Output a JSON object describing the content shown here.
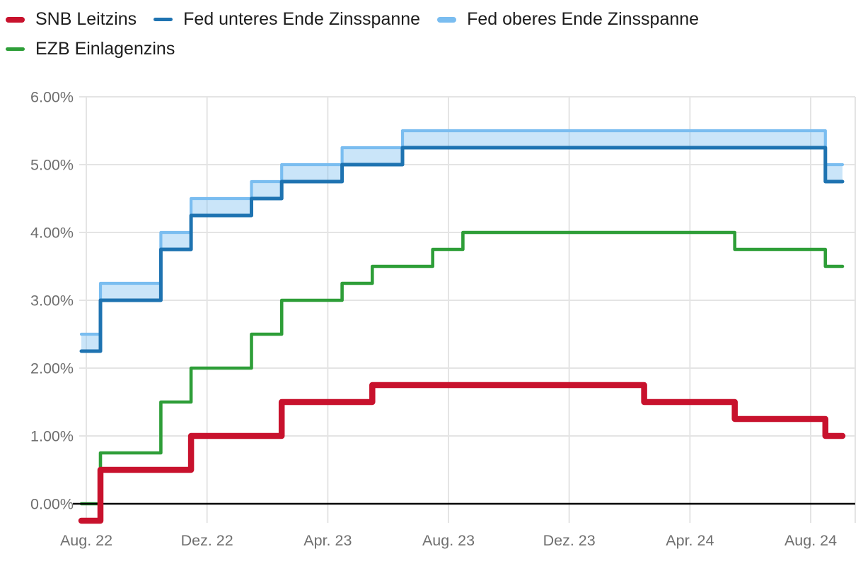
{
  "legend": {
    "items": [
      {
        "label": "SNB Leitzins",
        "color": "#c8122d",
        "thickness": 8
      },
      {
        "label": "Fed unteres Ende Zinsspanne",
        "color": "#1e73b1",
        "thickness": 5
      },
      {
        "label": "Fed oberes Ende Zinsspanne",
        "color": "#7abdf0",
        "thickness": 8
      },
      {
        "label": "EZB Einlagenzins",
        "color": "#2e9e38",
        "thickness": 5
      }
    ]
  },
  "chart_data": {
    "type": "line",
    "step": "after",
    "unit": "percent",
    "title": "",
    "xlabel": "",
    "ylabel": "",
    "grid": true,
    "legend_position": "top",
    "ylim": [
      -0.5,
      6.0
    ],
    "x_start": "2022-09-12",
    "x_end": "2024-10-18",
    "x_ticks": [
      "Aug. 22",
      "Dez. 22",
      "Apr. 23",
      "Aug. 23",
      "Dez. 23",
      "Apr. 24",
      "Aug. 24"
    ],
    "y_ticks": [
      {
        "label": "6.00%",
        "value": 6
      },
      {
        "label": "5.00%",
        "value": 5
      },
      {
        "label": "4.00%",
        "value": 4
      },
      {
        "label": "3.00%",
        "value": 3
      },
      {
        "label": "2.00%",
        "value": 2
      },
      {
        "label": "1.00%",
        "value": 1
      },
      {
        "label": "0.00%",
        "value": 0
      }
    ],
    "series": [
      {
        "name": "SNB Leitzins",
        "color": "#c8122d",
        "stroke_width": 8.5,
        "points": [
          [
            "2022-09-12",
            -0.25
          ],
          [
            "2022-10-01",
            0.5
          ],
          [
            "2023-01-01",
            1.0
          ],
          [
            "2023-04-01",
            1.5
          ],
          [
            "2023-07-01",
            1.75
          ],
          [
            "2024-04-01",
            1.5
          ],
          [
            "2024-07-01",
            1.25
          ],
          [
            "2024-10-01",
            1.0
          ]
        ]
      },
      {
        "name": "Fed unteres Ende Zinsspanne",
        "color": "#1e73b1",
        "stroke_width": 5,
        "points": [
          [
            "2022-09-12",
            2.25
          ],
          [
            "2022-10-01",
            3.0
          ],
          [
            "2022-12-01",
            3.75
          ],
          [
            "2023-01-01",
            4.25
          ],
          [
            "2023-03-01",
            4.5
          ],
          [
            "2023-04-01",
            4.75
          ],
          [
            "2023-06-01",
            5.0
          ],
          [
            "2023-08-01",
            5.25
          ],
          [
            "2024-10-01",
            4.75
          ]
        ]
      },
      {
        "name": "Fed oberes Ende Zinsspanne",
        "color": "#7abdf0",
        "stroke_width": 4.2,
        "points": [
          [
            "2022-09-12",
            2.5
          ],
          [
            "2022-10-01",
            3.25
          ],
          [
            "2022-12-01",
            4.0
          ],
          [
            "2023-01-01",
            4.5
          ],
          [
            "2023-03-01",
            4.75
          ],
          [
            "2023-04-01",
            5.0
          ],
          [
            "2023-06-01",
            5.25
          ],
          [
            "2023-08-01",
            5.5
          ],
          [
            "2024-10-01",
            5.0
          ]
        ]
      },
      {
        "name": "EZB Einlagenzins",
        "color": "#2e9e38",
        "stroke_width": 4.6,
        "points": [
          [
            "2022-09-12",
            0.0
          ],
          [
            "2022-10-01",
            0.75
          ],
          [
            "2022-12-01",
            1.5
          ],
          [
            "2023-01-01",
            2.0
          ],
          [
            "2023-03-01",
            2.5
          ],
          [
            "2023-04-01",
            3.0
          ],
          [
            "2023-06-01",
            3.25
          ],
          [
            "2023-07-01",
            3.5
          ],
          [
            "2023-09-01",
            3.75
          ],
          [
            "2023-10-01",
            4.0
          ],
          [
            "2024-07-01",
            3.75
          ],
          [
            "2024-10-01",
            3.5
          ]
        ]
      }
    ],
    "band": {
      "upper": "Fed oberes Ende Zinsspanne",
      "lower": "Fed unteres Ende Zinsspanne",
      "fill": "#7abdf0",
      "opacity": 0.4
    }
  },
  "colors": {
    "grid": "#e4e4e4",
    "zero_line": "#000000",
    "axis_text": "#6f6f6f",
    "legend_text": "#1d1d1d",
    "background": "#ffffff"
  }
}
